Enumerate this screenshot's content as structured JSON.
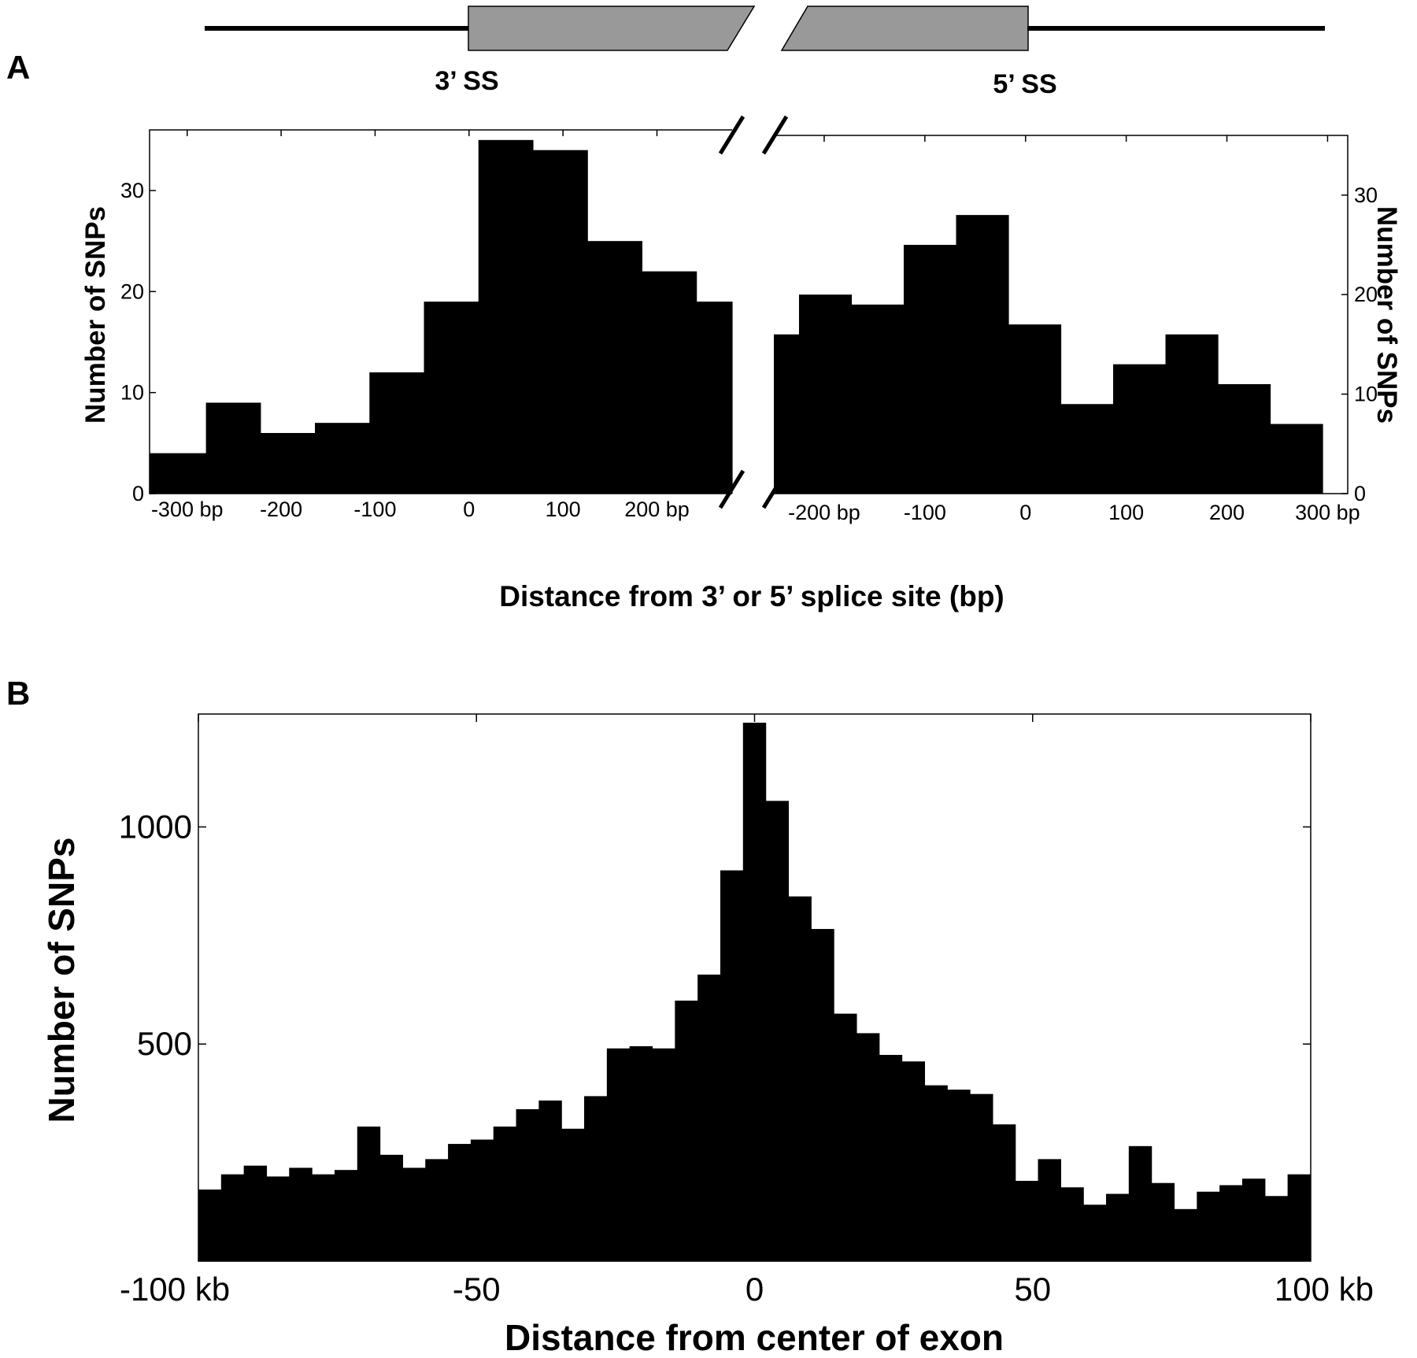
{
  "panel_labels": {
    "a": "A",
    "b": "B"
  },
  "gene_diagram": {
    "left_label": "3’ SS",
    "right_label": "5’ SS",
    "exon_fill": "#999999"
  },
  "chart_data": [
    {
      "panel": "A-left",
      "type": "bar",
      "xlabel": "Distance from 3’ or 5’ splice site (bp)",
      "ylabel": "Number of SNPs",
      "ylim": [
        0,
        36
      ],
      "yticks": [
        0,
        10,
        20,
        30
      ],
      "xlim": [
        -340,
        280
      ],
      "xticks": [
        -300,
        -200,
        -100,
        0,
        100,
        200
      ],
      "xticklabels": [
        "-300 bp",
        "-200",
        "-100",
        "0",
        "100",
        "200 bp"
      ],
      "bin_edges": [
        -340,
        -280,
        -222,
        -164,
        -106,
        -48,
        10,
        68,
        126,
        184,
        242,
        280
      ],
      "values": [
        4,
        9,
        6,
        7,
        12,
        19,
        35,
        34,
        25,
        22,
        19
      ],
      "color": "#000000"
    },
    {
      "panel": "A-right",
      "type": "bar",
      "xlabel": "Distance from 3’ or 5’ splice site (bp)",
      "ylabel": "Number of SNPs",
      "ylim": [
        0,
        36
      ],
      "yticks": [
        0,
        10,
        20,
        30
      ],
      "xlim": [
        -250,
        320
      ],
      "xticks": [
        -200,
        -100,
        0,
        100,
        200,
        300
      ],
      "xticklabels": [
        "-200 bp",
        "-100",
        "0",
        "100",
        "200",
        "300 bp"
      ],
      "bin_edges": [
        -250,
        -225,
        -173,
        -121,
        -69,
        -17,
        35,
        87,
        139,
        191,
        243,
        295,
        320
      ],
      "values": [
        16,
        20,
        19,
        25,
        28,
        17,
        9,
        13,
        16,
        11,
        7,
        0
      ],
      "color": "#000000"
    },
    {
      "panel": "B",
      "type": "bar",
      "xlabel": "Distance from center of exon",
      "ylabel": "Number of SNPs",
      "ylim": [
        0,
        1260
      ],
      "yticks": [
        500,
        1000
      ],
      "yticklabels": [
        "500",
        "1000"
      ],
      "xlim": [
        -100,
        100
      ],
      "xticks": [
        -100,
        -50,
        0,
        50,
        100
      ],
      "xticklabels": [
        "-100 kb",
        "-50",
        "0",
        "50",
        "100 kb"
      ],
      "bin_width": 4.08,
      "values": [
        165,
        200,
        220,
        195,
        215,
        200,
        210,
        310,
        245,
        215,
        235,
        270,
        280,
        310,
        350,
        370,
        305,
        380,
        490,
        495,
        490,
        600,
        660,
        900,
        1240,
        1060,
        840,
        765,
        570,
        525,
        475,
        460,
        405,
        395,
        385,
        315,
        185,
        235,
        170,
        130,
        155,
        265,
        180,
        120,
        160,
        175,
        190,
        150,
        200
      ],
      "last_bar_value": 110,
      "color": "#000000"
    }
  ]
}
